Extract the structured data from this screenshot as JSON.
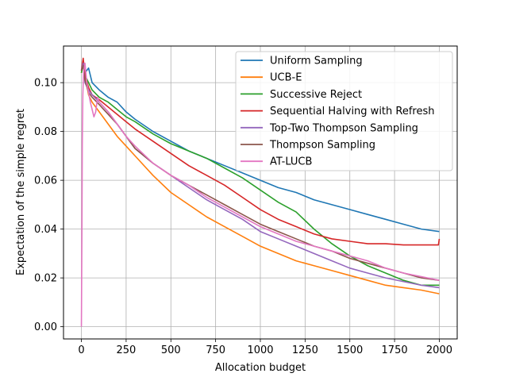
{
  "chart_data": {
    "type": "line",
    "title": "",
    "xlabel": "Allocation budget",
    "ylabel": "Expectation of the simple regret",
    "xlim": [
      -100,
      2100
    ],
    "ylim": [
      -0.005,
      0.115
    ],
    "xticks": [
      0,
      250,
      500,
      750,
      1000,
      1250,
      1500,
      1750,
      2000
    ],
    "yticks": [
      0.0,
      0.02,
      0.04,
      0.06,
      0.08,
      0.1
    ],
    "xtick_labels": [
      "0",
      "250",
      "500",
      "750",
      "1000",
      "1250",
      "1500",
      "1750",
      "2000"
    ],
    "ytick_labels": [
      "0.00",
      "0.02",
      "0.04",
      "0.06",
      "0.08",
      "0.10"
    ],
    "grid": true,
    "legend_position": "top-right",
    "series": [
      {
        "name": "Uniform Sampling",
        "color": "#1f77b4",
        "x": [
          0,
          10,
          20,
          40,
          60,
          100,
          150,
          200,
          250,
          300,
          400,
          500,
          600,
          700,
          800,
          900,
          1000,
          1100,
          1200,
          1300,
          1400,
          1500,
          1600,
          1700,
          1800,
          1900,
          2000
        ],
        "y": [
          0.105,
          0.107,
          0.104,
          0.106,
          0.1,
          0.097,
          0.094,
          0.092,
          0.088,
          0.085,
          0.08,
          0.076,
          0.072,
          0.069,
          0.066,
          0.063,
          0.06,
          0.057,
          0.055,
          0.052,
          0.05,
          0.048,
          0.046,
          0.044,
          0.042,
          0.04,
          0.039
        ]
      },
      {
        "name": "UCB-E",
        "color": "#ff7f0e",
        "x": [
          0,
          10,
          20,
          40,
          60,
          100,
          150,
          200,
          250,
          300,
          400,
          500,
          600,
          700,
          800,
          900,
          1000,
          1100,
          1200,
          1300,
          1400,
          1500,
          1600,
          1700,
          1800,
          1900,
          2000
        ],
        "y": [
          0.104,
          0.109,
          0.103,
          0.095,
          0.092,
          0.088,
          0.083,
          0.078,
          0.074,
          0.07,
          0.062,
          0.055,
          0.05,
          0.045,
          0.041,
          0.037,
          0.033,
          0.03,
          0.027,
          0.025,
          0.023,
          0.021,
          0.019,
          0.017,
          0.016,
          0.015,
          0.0135
        ]
      },
      {
        "name": "Successive Reject",
        "color": "#2ca02c",
        "x": [
          0,
          10,
          20,
          40,
          60,
          100,
          150,
          200,
          250,
          300,
          400,
          500,
          600,
          700,
          800,
          900,
          1000,
          1100,
          1200,
          1300,
          1400,
          1500,
          1600,
          1700,
          1800,
          1900,
          2000
        ],
        "y": [
          0.104,
          0.108,
          0.103,
          0.1,
          0.097,
          0.094,
          0.092,
          0.089,
          0.086,
          0.084,
          0.079,
          0.075,
          0.072,
          0.069,
          0.065,
          0.061,
          0.056,
          0.051,
          0.047,
          0.04,
          0.034,
          0.029,
          0.025,
          0.022,
          0.019,
          0.017,
          0.017
        ]
      },
      {
        "name": "Sequential Halving with Refresh",
        "color": "#d62728",
        "x": [
          0,
          10,
          20,
          40,
          60,
          100,
          150,
          200,
          250,
          300,
          400,
          500,
          600,
          700,
          800,
          900,
          1000,
          1100,
          1200,
          1300,
          1400,
          1500,
          1600,
          1700,
          1800,
          1900,
          1995,
          2000
        ],
        "y": [
          0.105,
          0.11,
          0.103,
          0.098,
          0.095,
          0.093,
          0.09,
          0.087,
          0.084,
          0.081,
          0.076,
          0.071,
          0.066,
          0.062,
          0.058,
          0.053,
          0.048,
          0.044,
          0.041,
          0.038,
          0.036,
          0.035,
          0.034,
          0.034,
          0.0335,
          0.0335,
          0.0335,
          0.036
        ]
      },
      {
        "name": "Top-Two Thompson Sampling",
        "color": "#9467bd",
        "x": [
          0,
          10,
          20,
          40,
          60,
          100,
          150,
          200,
          250,
          300,
          400,
          500,
          600,
          700,
          800,
          900,
          1000,
          1100,
          1200,
          1300,
          1400,
          1500,
          1600,
          1700,
          1800,
          1900,
          2000
        ],
        "y": [
          0.105,
          0.108,
          0.1,
          0.097,
          0.095,
          0.092,
          0.088,
          0.083,
          0.078,
          0.073,
          0.067,
          0.062,
          0.057,
          0.052,
          0.048,
          0.044,
          0.039,
          0.036,
          0.033,
          0.03,
          0.027,
          0.024,
          0.022,
          0.02,
          0.0185,
          0.017,
          0.016
        ]
      },
      {
        "name": "Thompson Sampling",
        "color": "#8c564b",
        "x": [
          0,
          10,
          20,
          40,
          60,
          100,
          150,
          200,
          250,
          300,
          400,
          500,
          600,
          700,
          800,
          900,
          1000,
          1100,
          1200,
          1300,
          1400,
          1500,
          1600,
          1700,
          1800,
          1900,
          2000
        ],
        "y": [
          0.105,
          0.107,
          0.101,
          0.096,
          0.094,
          0.091,
          0.087,
          0.083,
          0.078,
          0.073,
          0.067,
          0.062,
          0.058,
          0.054,
          0.05,
          0.046,
          0.042,
          0.039,
          0.036,
          0.033,
          0.031,
          0.028,
          0.026,
          0.024,
          0.022,
          0.02,
          0.019
        ]
      },
      {
        "name": "AT-LUCB",
        "color": "#e377c2",
        "x": [
          0,
          3,
          5,
          8,
          12,
          20,
          30,
          50,
          70,
          80,
          90,
          100,
          150,
          200,
          250,
          300,
          400,
          500,
          600,
          700,
          800,
          900,
          1000,
          1100,
          1200,
          1300,
          1400,
          1500,
          1600,
          1700,
          1800,
          1900,
          2000
        ],
        "y": [
          0.0,
          0.04,
          0.075,
          0.095,
          0.104,
          0.108,
          0.1,
          0.092,
          0.086,
          0.088,
          0.094,
          0.092,
          0.088,
          0.083,
          0.078,
          0.074,
          0.067,
          0.062,
          0.058,
          0.053,
          0.049,
          0.045,
          0.041,
          0.038,
          0.035,
          0.033,
          0.031,
          0.029,
          0.027,
          0.024,
          0.022,
          0.0205,
          0.019
        ]
      }
    ]
  }
}
